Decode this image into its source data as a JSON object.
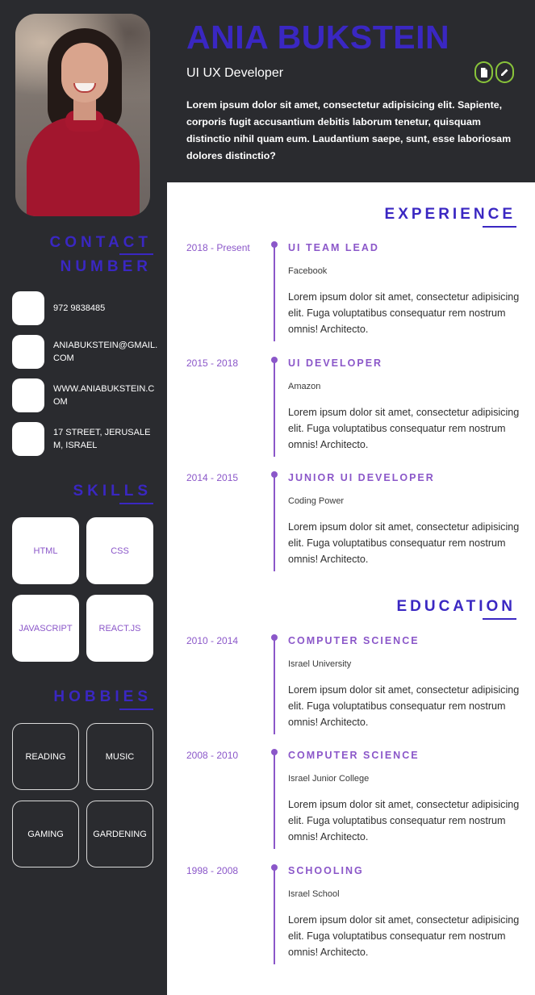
{
  "header": {
    "name": "ANIA BUKSTEIN",
    "role": "UI UX Developer",
    "intro": "Lorem ipsum dolor sit amet, consectetur adipisicing elit. Sapiente, corporis fugit accusantium debitis laborum tenetur, quisquam distinctio nihil quam eum. Laudantium saepe, sunt, esse laboriosam dolores distinctio?",
    "buttons": [
      {
        "icon": "document-icon"
      },
      {
        "icon": "pencil-icon"
      }
    ]
  },
  "sidebar": {
    "contact_title_line1": "CONTACT",
    "contact_title_line2": "NUMBER",
    "contacts": [
      {
        "text": "972 9838485"
      },
      {
        "text": "ANIABUKSTEIN@GMAIL.COM"
      },
      {
        "text": "WWW.ANIABUKSTEIN.COM"
      },
      {
        "text": "17 STREET, JERUSALEM, ISRAEL"
      }
    ],
    "skills_title": "SKILLS",
    "skills": [
      "HTML",
      "CSS",
      "JAVASCRIPT",
      "REACT.JS"
    ],
    "hobbies_title": "HOBBIES",
    "hobbies": [
      "READING",
      "MUSIC",
      "GAMING",
      "GARDENING"
    ]
  },
  "experience": {
    "title": "EXPERIENCE",
    "items": [
      {
        "date": "2018 - Present",
        "title": "UI TEAM LEAD",
        "org": "Facebook",
        "desc": "Lorem ipsum dolor sit amet, consectetur adipisicing elit. Fuga voluptatibus consequatur rem nostrum omnis! Architecto."
      },
      {
        "date": "2015 - 2018",
        "title": "UI DEVELOPER",
        "org": "Amazon",
        "desc": "Lorem ipsum dolor sit amet, consectetur adipisicing elit. Fuga voluptatibus consequatur rem nostrum omnis! Architecto."
      },
      {
        "date": "2014 - 2015",
        "title": "JUNIOR UI DEVELOPER",
        "org": "Coding Power",
        "desc": "Lorem ipsum dolor sit amet, consectetur adipisicing elit. Fuga voluptatibus consequatur rem nostrum omnis! Architecto."
      }
    ]
  },
  "education": {
    "title": "EDUCATION",
    "items": [
      {
        "date": "2010 - 2014",
        "title": "COMPUTER SCIENCE",
        "org": "Israel University",
        "desc": "Lorem ipsum dolor sit amet, consectetur adipisicing elit. Fuga voluptatibus consequatur rem nostrum omnis! Architecto."
      },
      {
        "date": "2008 - 2010",
        "title": "COMPUTER SCIENCE",
        "org": "Israel Junior College",
        "desc": "Lorem ipsum dolor sit amet, consectetur adipisicing elit. Fuga voluptatibus consequatur rem nostrum omnis! Architecto."
      },
      {
        "date": "1998 - 2008",
        "title": "SCHOOLING",
        "org": "Israel School",
        "desc": "Lorem ipsum dolor sit amet, consectetur adipisicing elit. Fuga voluptatibus consequatur rem nostrum omnis! Architecto."
      }
    ]
  },
  "colors": {
    "dark_bg": "#2a2b2f",
    "accent_blue": "#3a27c2",
    "accent_purple": "#8b57c9",
    "button_border": "#89c43a"
  }
}
